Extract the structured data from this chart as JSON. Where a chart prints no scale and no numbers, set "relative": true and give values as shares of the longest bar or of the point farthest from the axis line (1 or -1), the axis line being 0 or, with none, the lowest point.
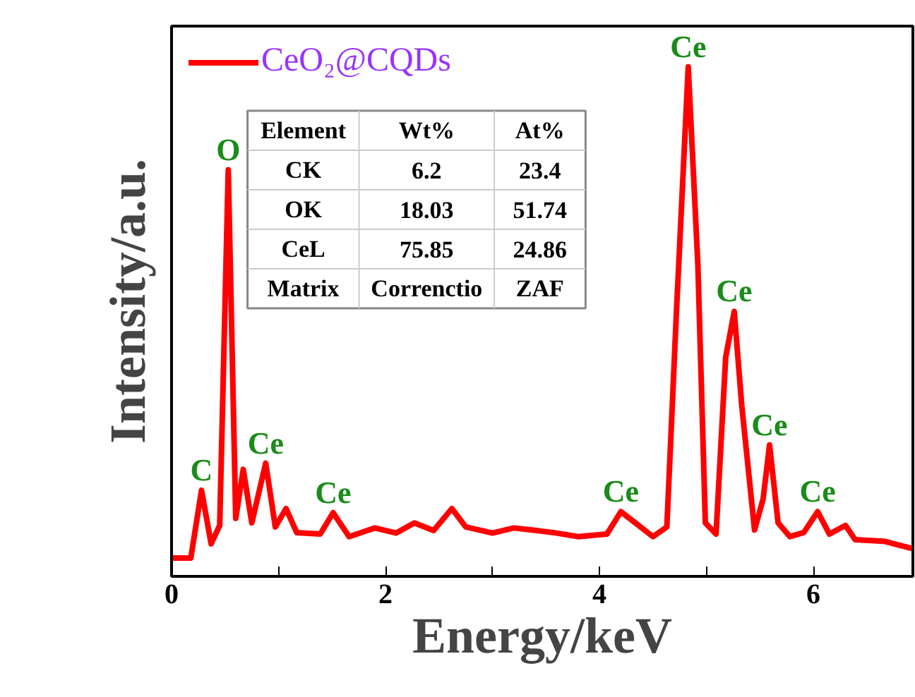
{
  "chart_data": {
    "type": "line",
    "relative": true,
    "xlabel": "Energy/keV",
    "ylabel": "Intensity/a.u.",
    "xlim": [
      0,
      6.93
    ],
    "xticks": [
      0,
      {
        "value": 1,
        "label": null
      },
      2,
      {
        "value": 3,
        "label": null
      },
      4,
      {
        "value": 5,
        "label": null
      },
      6
    ],
    "tick_labels": "x",
    "grid": false,
    "legend": "top left",
    "marker": "none",
    "line_style": "solid",
    "series": [
      {
        "name": "CeO₂@CQDs",
        "color": "#ff0000",
        "x": [
          0,
          0.18,
          0.28,
          0.37,
          0.45,
          0.53,
          0.6,
          0.67,
          0.75,
          0.88,
          0.97,
          1.07,
          1.17,
          1.39,
          1.51,
          1.66,
          1.9,
          2.1,
          2.27,
          2.45,
          2.62,
          2.75,
          3.0,
          3.2,
          3.37,
          3.6,
          3.8,
          4.07,
          4.2,
          4.5,
          4.63,
          4.72,
          4.83,
          4.92,
          4.99,
          5.09,
          5.18,
          5.26,
          5.33,
          5.45,
          5.53,
          5.59,
          5.67,
          5.78,
          5.91,
          6.04,
          6.15,
          6.3,
          6.39,
          6.66,
          6.92
        ],
        "values": [
          0.036,
          0.036,
          0.169,
          0.064,
          0.1,
          0.798,
          0.114,
          0.21,
          0.105,
          0.222,
          0.097,
          0.133,
          0.086,
          0.083,
          0.125,
          0.078,
          0.095,
          0.085,
          0.105,
          0.09,
          0.133,
          0.097,
          0.085,
          0.095,
          0.091,
          0.085,
          0.078,
          0.083,
          0.127,
          0.078,
          0.097,
          0.52,
          1,
          0.612,
          0.105,
          0.083,
          0.43,
          0.52,
          0.336,
          0.091,
          0.152,
          0.258,
          0.105,
          0.078,
          0.086,
          0.127,
          0.083,
          0.1,
          0.072,
          0.069,
          0.055
        ]
      }
    ],
    "annotations": [
      {
        "text": "C",
        "x": 0.28,
        "y": 0.169
      },
      {
        "text": "O",
        "x": 0.53,
        "y": 0.798
      },
      {
        "text": "Ce",
        "x": 0.88,
        "y": 0.222
      },
      {
        "text": "Ce",
        "x": 1.51,
        "y": 0.125
      },
      {
        "text": "Ce",
        "x": 4.2,
        "y": 0.127
      },
      {
        "text": "Ce",
        "x": 4.83,
        "y": 1
      },
      {
        "text": "Ce",
        "x": 5.26,
        "y": 0.52
      },
      {
        "text": "Ce",
        "x": 5.59,
        "y": 0.258
      },
      {
        "text": "Ce",
        "x": 6.04,
        "y": 0.127
      },
      "Element",
      "Wt%",
      "At%",
      "CK",
      "6.2",
      "23.4",
      "OK",
      "18.03",
      "51.74",
      "CeL",
      "75.85",
      "24.86",
      "Matrix",
      "Correnctio",
      "ZAF"
    ]
  }
}
